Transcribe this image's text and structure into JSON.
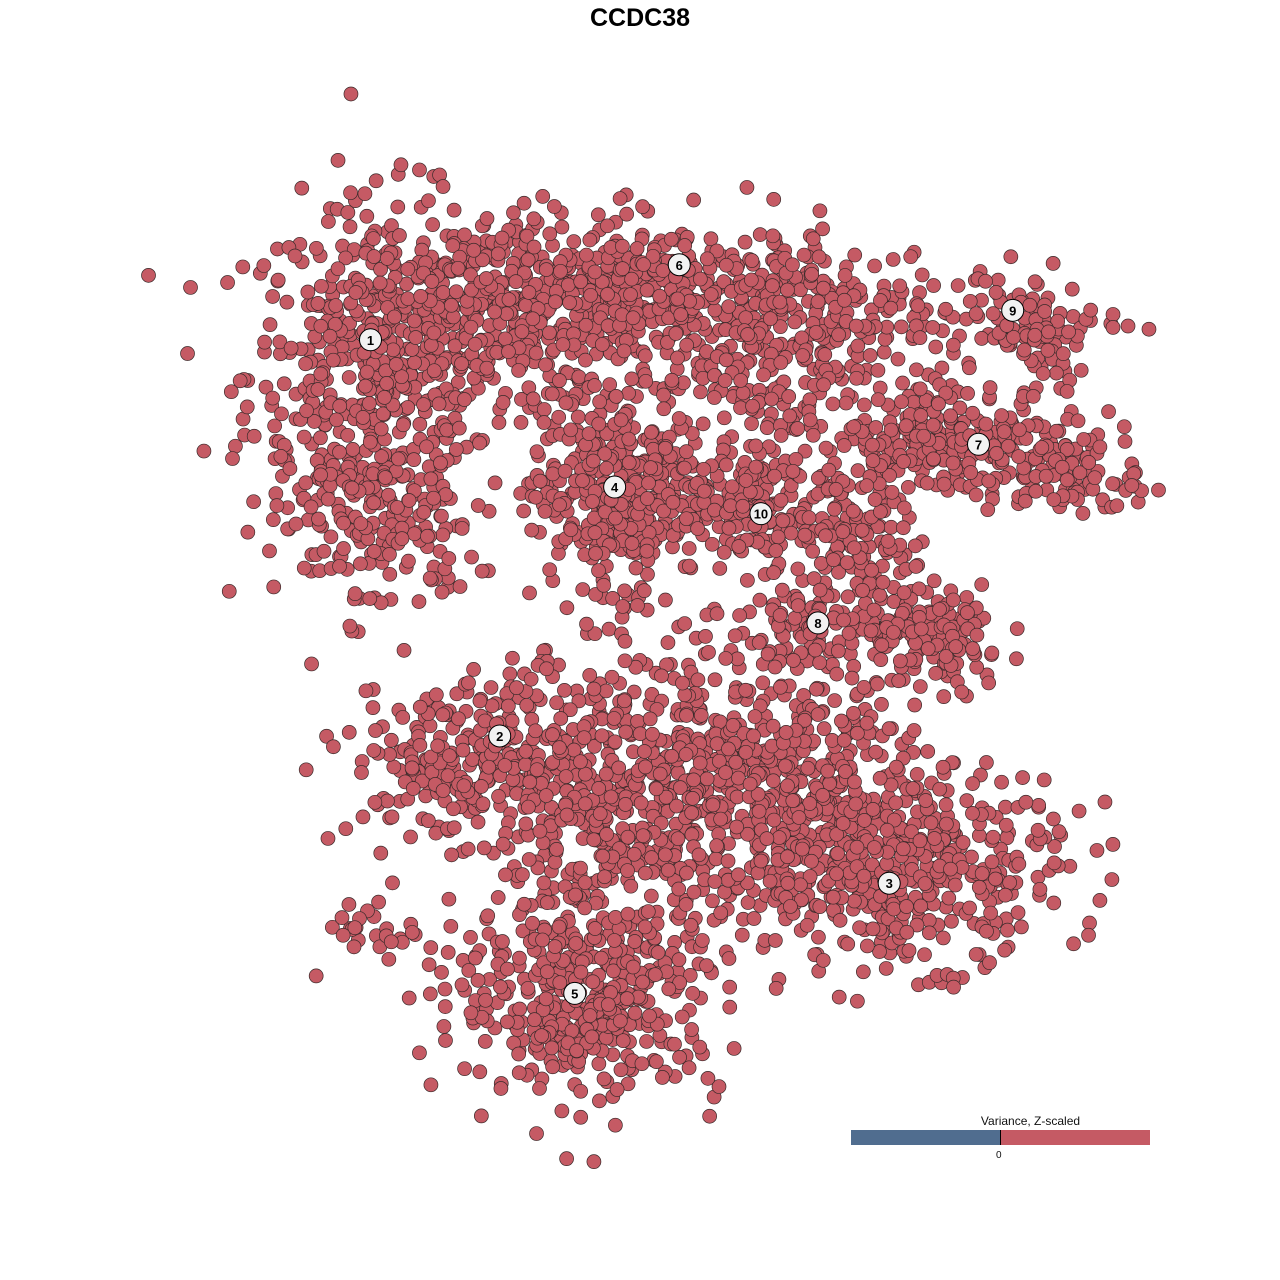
{
  "chart_data": {
    "type": "scatter",
    "title": "CCDC38",
    "xlabel": "",
    "ylabel": "",
    "xlim": [
      -50,
      50
    ],
    "ylim": [
      -50,
      50
    ],
    "grid": false,
    "point_color": "#c55a64",
    "point_stroke": "#3a2a2a",
    "clusters": [
      {
        "label": "1",
        "center": [
          -31,
          31.6
        ],
        "blobs": [
          {
            "c": [
              -30,
              28
            ],
            "sd": [
              7,
              9
            ],
            "n": 500
          },
          {
            "c": [
              -18,
              35
            ],
            "sd": [
              8,
              5
            ],
            "n": 300
          },
          {
            "c": [
              -30,
              12
            ],
            "sd": [
              5,
              5
            ],
            "n": 150
          }
        ]
      },
      {
        "label": "6",
        "center": [
          1.5,
          39.5
        ],
        "blobs": [
          {
            "c": [
              0,
              36
            ],
            "sd": [
              10,
              4
            ],
            "n": 450
          },
          {
            "c": [
              12,
              30
            ],
            "sd": [
              6,
              5
            ],
            "n": 200
          }
        ]
      },
      {
        "label": "9",
        "center": [
          36.6,
          34.7
        ],
        "blobs": [
          {
            "c": [
              33,
              34
            ],
            "sd": [
              8,
              3
            ],
            "n": 120
          },
          {
            "c": [
              40,
              31
            ],
            "sd": [
              2,
              4
            ],
            "n": 40
          }
        ]
      },
      {
        "label": "7",
        "center": [
          33,
          20.6
        ],
        "blobs": [
          {
            "c": [
              30,
              21
            ],
            "sd": [
              7,
              3
            ],
            "n": 250
          },
          {
            "c": [
              42,
              17
            ],
            "sd": [
              4,
              2
            ],
            "n": 80
          }
        ]
      },
      {
        "label": "4",
        "center": [
          -5.3,
          16.1
        ],
        "blobs": [
          {
            "c": [
              -5,
              16
            ],
            "sd": [
              4.5,
              5
            ],
            "n": 400
          }
        ]
      },
      {
        "label": "10",
        "center": [
          10.1,
          13.3
        ],
        "blobs": [
          {
            "c": [
              8,
              16
            ],
            "sd": [
              4,
              3
            ],
            "n": 120
          },
          {
            "c": [
              10,
              12
            ],
            "sd": [
              2,
              3
            ],
            "n": 50
          }
        ]
      },
      {
        "label": "8",
        "center": [
          16.1,
          1.8
        ],
        "blobs": [
          {
            "c": [
              20,
              9
            ],
            "sd": [
              3,
              6
            ],
            "n": 150
          },
          {
            "c": [
              28,
              0
            ],
            "sd": [
              4,
              3
            ],
            "n": 150
          },
          {
            "c": [
              14,
              2
            ],
            "sd": [
              5,
              2
            ],
            "n": 80
          }
        ]
      },
      {
        "label": "2",
        "center": [
          -17.4,
          -10.1
        ],
        "blobs": [
          {
            "c": [
              -21,
              -13
            ],
            "sd": [
              6,
              4
            ],
            "n": 250
          },
          {
            "c": [
              -30,
              -30
            ],
            "sd": [
              3,
              2
            ],
            "n": 30
          }
        ]
      },
      {
        "label": "3",
        "center": [
          23.6,
          -25.6
        ],
        "blobs": [
          {
            "c": [
              24,
              -24
            ],
            "sd": [
              9,
              5
            ],
            "n": 500
          },
          {
            "c": [
              10,
              -14
            ],
            "sd": [
              8,
              6
            ],
            "n": 400
          }
        ]
      },
      {
        "label": "5",
        "center": [
          -9.5,
          -37.2
        ],
        "blobs": [
          {
            "c": [
              -8,
              -38
            ],
            "sd": [
              7,
              5
            ],
            "n": 400
          },
          {
            "c": [
              -5,
              -18
            ],
            "sd": [
              7,
              9
            ],
            "n": 500
          }
        ]
      }
    ],
    "legend": {
      "title": "Variance, Z-scaled",
      "tick": "0",
      "low_color": "#506d8f",
      "high_color": "#c55a64",
      "placement": "bottom-right"
    }
  }
}
